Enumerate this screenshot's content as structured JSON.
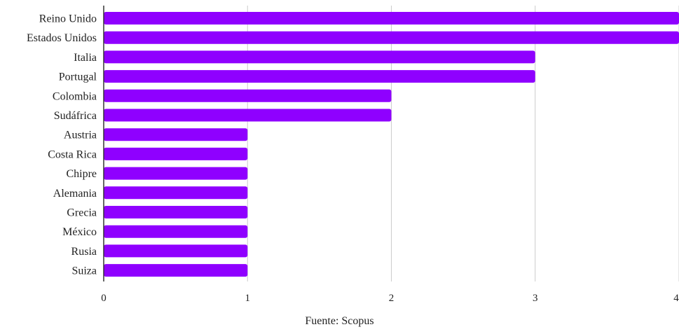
{
  "chart_data": {
    "type": "bar",
    "orientation": "horizontal",
    "categories": [
      "Reino Unido",
      "Estados Unidos",
      "Italia",
      "Portugal",
      "Colombia",
      "Sudáfrica",
      "Austria",
      "Costa Rica",
      "Chipre",
      "Alemania",
      "Grecia",
      "México",
      "Rusia",
      "Suiza"
    ],
    "values": [
      4,
      4,
      3,
      3,
      2,
      2,
      1,
      1,
      1,
      1,
      1,
      1,
      1,
      1
    ],
    "x_ticks": [
      "0",
      "1",
      "2",
      "3",
      "4"
    ],
    "xlim": [
      0,
      4
    ],
    "grid": true,
    "bar_color": "#8f00ff",
    "gridline_color": "#cccccc",
    "axis_color": "#333333"
  },
  "source_note": "Fuente: Scopus"
}
